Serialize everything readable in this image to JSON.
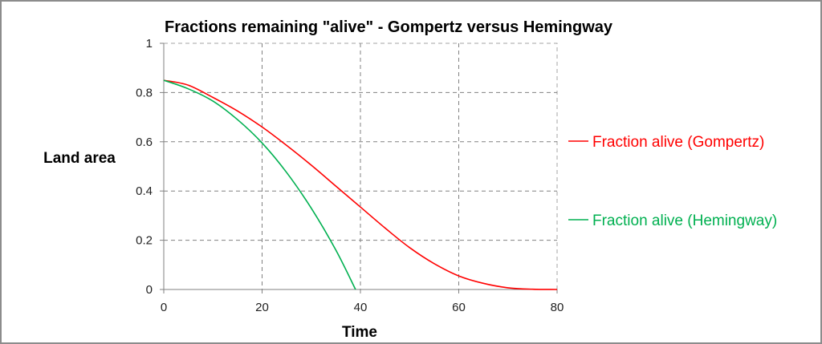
{
  "chart_data": {
    "type": "line",
    "title": "Fractions remaining \"alive\" - Gompertz versus Hemingway",
    "xlabel": "Time",
    "ylabel": "Land area",
    "xlim": [
      0,
      80
    ],
    "ylim": [
      0,
      1
    ],
    "x_ticks": [
      "0",
      "20",
      "40",
      "60",
      "80"
    ],
    "y_ticks": [
      "0",
      "0.2",
      "0.4",
      "0.6",
      "0.8",
      "1"
    ],
    "grid": true,
    "legend_position": "right",
    "series": [
      {
        "name": "Fraction alive (Gompertz)",
        "color": "#ff0000",
        "x": [
          0,
          5,
          10,
          15,
          20,
          25,
          30,
          35,
          40,
          45,
          50,
          55,
          60,
          65,
          70,
          75,
          80
        ],
        "y": [
          0.85,
          0.83,
          0.78,
          0.725,
          0.66,
          0.585,
          0.505,
          0.42,
          0.335,
          0.25,
          0.17,
          0.105,
          0.055,
          0.025,
          0.007,
          0.001,
          0
        ]
      },
      {
        "name": "Fraction alive (Hemingway)",
        "color": "#00b050",
        "x": [
          0,
          5,
          10,
          15,
          20,
          25,
          30,
          35,
          39
        ],
        "y": [
          0.85,
          0.815,
          0.765,
          0.69,
          0.595,
          0.475,
          0.33,
          0.16,
          0
        ]
      }
    ]
  }
}
